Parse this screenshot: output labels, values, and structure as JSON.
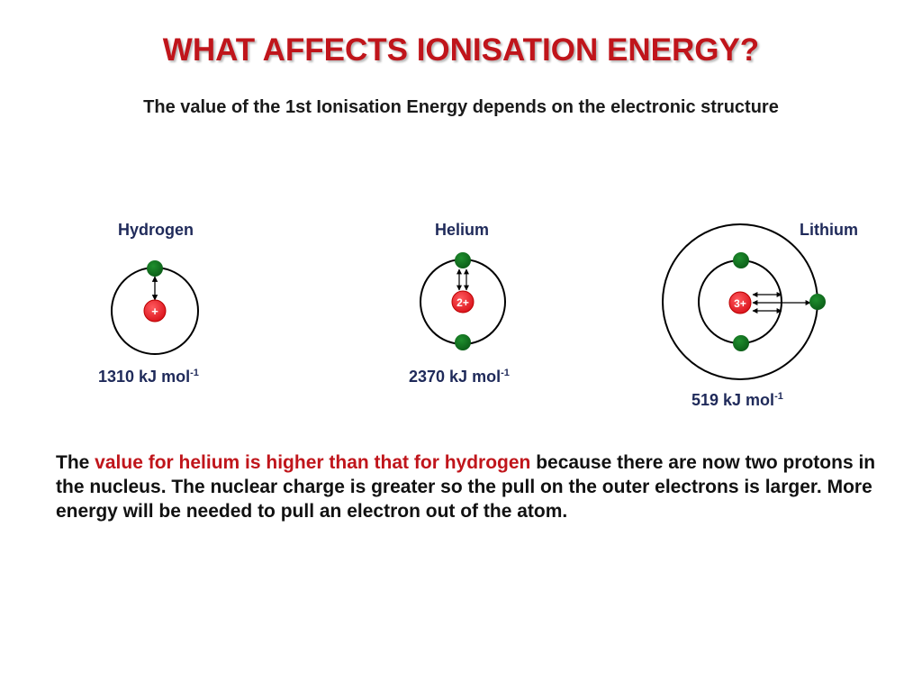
{
  "slide": {
    "title": "WHAT AFFECTS IONISATION ENERGY?",
    "subtitle": "The value of the 1st Ionisation Energy depends on the electronic structure"
  },
  "atoms": [
    {
      "name": "Hydrogen",
      "nucleus_charge": "+",
      "energy_value": "1310 kJ mol",
      "energy_exponent": "-1"
    },
    {
      "name": "Helium",
      "nucleus_charge": "2+",
      "energy_value": "2370 kJ mol",
      "energy_exponent": "-1"
    },
    {
      "name": "Lithium",
      "nucleus_charge": "3+",
      "energy_value": "519 kJ mol",
      "energy_exponent": "-1"
    }
  ],
  "explanation": {
    "lead": "The ",
    "highlight": "value for helium is higher than that for hydrogen",
    "rest": " because there are now two protons in the nucleus. The nuclear charge is greater so the pull on the outer electrons is larger. More energy will be needed to pull an electron out of the atom."
  },
  "colors": {
    "title": "#c0151b",
    "nucleus": "#e8161c",
    "electron": "#0f6e1c",
    "label": "#1f2a5a",
    "highlight": "#c0151b"
  }
}
